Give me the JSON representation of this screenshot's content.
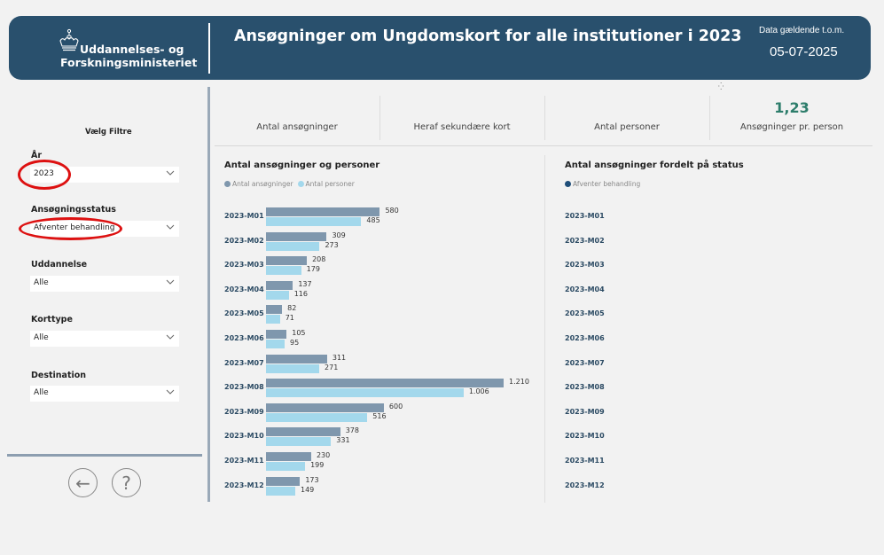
{
  "header": {
    "logo_line1": "Uddannelses- og",
    "logo_line2": "Forskningsministeriet",
    "title": "Ansøgninger om Ungdomskort for alle institutioner i 2023",
    "data_label": "Data gældende t.o.m.",
    "data_date": "05-07-2025"
  },
  "colors": {
    "header_bg": "#29506d",
    "series_applications": "#7f97ad",
    "series_persons": "#a3d8ec",
    "status_pending": "#1f4e79",
    "kpi_value": "#2d7d6b",
    "annotation": "#dd1111"
  },
  "filters": {
    "title": "Vælg Filtre",
    "items": [
      {
        "label": "År",
        "value": "2023"
      },
      {
        "label": "Ansøgningsstatus",
        "value": "Afventer behandling"
      },
      {
        "label": "Uddannelse",
        "value": "Alle"
      },
      {
        "label": "Korttype",
        "value": "Alle"
      },
      {
        "label": "Destination",
        "value": "Alle"
      }
    ]
  },
  "nav": {
    "back_icon": "arrow-left-icon",
    "help_icon": "question-icon",
    "back_glyph": "←",
    "help_glyph": "?"
  },
  "kpis": [
    {
      "label": "Antal ansøgninger",
      "value": ""
    },
    {
      "label": "Heraf sekundære kort",
      "value": ""
    },
    {
      "label": "Antal personer",
      "value": ""
    },
    {
      "label": "Ansøgninger pr. person",
      "value": "1,23"
    }
  ],
  "chart_data": [
    {
      "type": "bar",
      "orientation": "horizontal",
      "title": "Antal ansøgninger og personer",
      "legend": [
        "Antal ansøgninger",
        "Antal personer"
      ],
      "legend_position": "top-left",
      "categories": [
        "2023-M01",
        "2023-M02",
        "2023-M03",
        "2023-M04",
        "2023-M05",
        "2023-M06",
        "2023-M07",
        "2023-M08",
        "2023-M09",
        "2023-M10",
        "2023-M11",
        "2023-M12"
      ],
      "series": [
        {
          "name": "Antal ansøgninger",
          "values": [
            580,
            309,
            208,
            137,
            82,
            105,
            311,
            1210,
            600,
            378,
            230,
            173
          ],
          "labels": [
            "580",
            "309",
            "208",
            "137",
            "82",
            "105",
            "311",
            "1.210",
            "600",
            "378",
            "230",
            "173"
          ]
        },
        {
          "name": "Antal personer",
          "values": [
            485,
            273,
            179,
            116,
            71,
            95,
            271,
            1006,
            516,
            331,
            199,
            149
          ],
          "labels": [
            "485",
            "273",
            "179",
            "116",
            "71",
            "95",
            "271",
            "1.006",
            "516",
            "331",
            "199",
            "149"
          ]
        }
      ],
      "xlim": [
        0,
        1210
      ],
      "grid": false
    },
    {
      "type": "bar",
      "orientation": "horizontal",
      "title": "Antal ansøgninger fordelt på status",
      "legend": [
        "Afventer behandling"
      ],
      "legend_position": "top-left",
      "categories": [
        "2023-M01",
        "2023-M02",
        "2023-M03",
        "2023-M04",
        "2023-M05",
        "2023-M06",
        "2023-M07",
        "2023-M08",
        "2023-M09",
        "2023-M10",
        "2023-M11",
        "2023-M12"
      ],
      "series": [
        {
          "name": "Afventer behandling",
          "values": []
        }
      ],
      "grid": false
    }
  ]
}
